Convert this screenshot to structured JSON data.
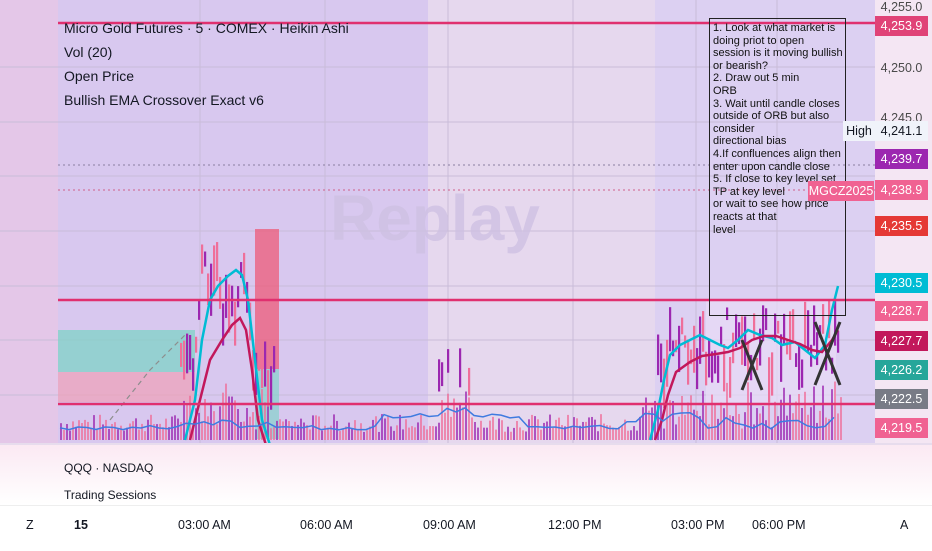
{
  "legend": {
    "title": "Micro Gold Futures · 5 · COMEX · Heikin Ashi",
    "vol": "Vol (20)",
    "open_price": "Open Price",
    "indicator": "Bullish EMA Crossover Exact v6"
  },
  "watermark": "Replay",
  "note_text": "1. Look at what market is doing priot to open session is it moving bullish or bearish?\n2. Draw out 5 min\nORB\n3. Wait until candle closes outside of ORB but also consider\ndirectional bias\n4.If confluences align then enter upon candle close\n5. If close to key level set TP at key level\nor wait to see how price reacts at that\nlevel",
  "price_axis": {
    "plain_ticks": [
      "4,255.0",
      "4,250.0",
      "4,245.0"
    ],
    "labels": [
      {
        "text": "4,253.9",
        "color": "#e04377"
      },
      {
        "text": "4,241.1",
        "color": "#f0f3fa",
        "dark": true
      },
      {
        "text": "4,239.7",
        "color": "#9c27b0"
      },
      {
        "text": "4,238.9",
        "color": "#f06292"
      },
      {
        "text": "4,235.5",
        "color": "#e53935"
      },
      {
        "text": "4,230.5",
        "color": "#00bcd4"
      },
      {
        "text": "4,228.7",
        "color": "#f06292"
      },
      {
        "text": "4,227.7",
        "color": "#c2185b"
      },
      {
        "text": "4,226.2",
        "color": "#26a69a"
      },
      {
        "text": "4,222.5",
        "color": "#787b86"
      },
      {
        "text": "4,219.5",
        "color": "#f06292"
      }
    ]
  },
  "tags": {
    "high": "High",
    "symbol": "MGCZ2025"
  },
  "colors": {
    "level_line": "#e0306f",
    "ema_fast": "#00bcd4",
    "ema_slow": "#c2185b",
    "volume_ma": "#3f7be0",
    "candle_up": "#9c27b0",
    "candle_down": "#ef6f9a"
  },
  "lower_pane": {
    "symbol": "QQQ · NASDAQ",
    "sessions": "Trading Sessions"
  },
  "time_axis": {
    "left_corner": "Z",
    "date": "15",
    "labels": [
      "03:00 AM",
      "06:00 AM",
      "09:00 AM",
      "12:00 PM",
      "03:00 PM",
      "06:00 PM"
    ],
    "right_corner": "A"
  }
}
